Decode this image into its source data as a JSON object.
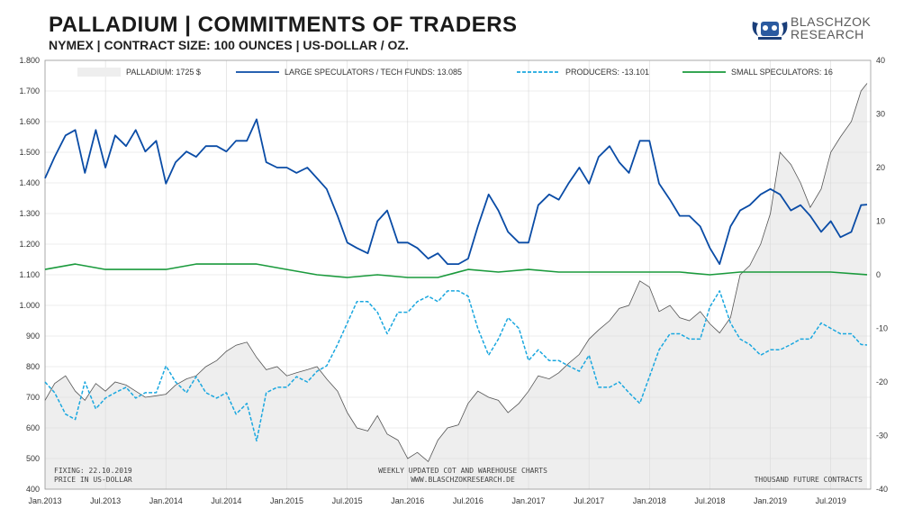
{
  "header": {
    "title": "PALLADIUM | COMMITMENTS OF TRADERS",
    "subtitle": "NYMEX | CONTRACT SIZE: 100 OUNCES | US-DOLLAR / OZ."
  },
  "logo": {
    "line1": "BLASCHZOK",
    "line2": "RESEARCH"
  },
  "footer": {
    "fixing": "FIXING: 22.10.2019",
    "price_unit": "PRICE IN US-DOLLAR",
    "center_line1": "WEEKLY UPDATED COT AND WAREHOUSE CHARTS",
    "center_line2": "WWW.BLASCHZOKRESEARCH.DE",
    "right": "THOUSAND FUTURE CONTRACTS"
  },
  "colors": {
    "price_fill": "#eeeeee",
    "price_line": "#555555",
    "large_spec": "#0a4ca6",
    "producers": "#1aa7df",
    "small_spec": "#1a9a3c",
    "grid": "#d9d9d9"
  },
  "chart_data": {
    "type": "line",
    "x_tick_labels": [
      "Jan.2013",
      "Jul.2013",
      "Jan.2014",
      "Jul.2014",
      "Jan.2015",
      "Jul.2015",
      "Jan.2016",
      "Jul.2016",
      "Jan.2017",
      "Jul.2017",
      "Jan.2018",
      "Jul.2018",
      "Jan.2019",
      "Jul.2019"
    ],
    "x_tick_positions": [
      2013.0,
      2013.5,
      2014.0,
      2014.5,
      2015.0,
      2015.5,
      2016.0,
      2016.5,
      2017.0,
      2017.5,
      2018.0,
      2018.5,
      2019.0,
      2019.5
    ],
    "x_range": [
      2013.0,
      2019.83
    ],
    "left_axis": {
      "label": "Price in US-Dollar",
      "range": [
        400,
        1800
      ],
      "ticks": [
        "400",
        "500",
        "600",
        "700",
        "800",
        "900",
        "1.000",
        "1.100",
        "1.200",
        "1.300",
        "1.400",
        "1.500",
        "1.600",
        "1.700",
        "1.800"
      ],
      "tick_values": [
        400,
        500,
        600,
        700,
        800,
        900,
        1000,
        1100,
        1200,
        1300,
        1400,
        1500,
        1600,
        1700,
        1800
      ]
    },
    "right_axis": {
      "label": "Thousand future contracts",
      "range": [
        -40,
        40
      ],
      "ticks": [
        "-40",
        "-30",
        "-20",
        "-10",
        "0",
        "10",
        "20",
        "30",
        "40"
      ],
      "tick_values": [
        -40,
        -30,
        -20,
        -10,
        0,
        10,
        20,
        30,
        40
      ]
    },
    "legend": [
      {
        "key": "price",
        "label": "PALLADIUM: 1725 $",
        "style": "area"
      },
      {
        "key": "large",
        "label": "LARGE SPECULATORS / TECH FUNDS: 13.085",
        "style": "solid"
      },
      {
        "key": "producers",
        "label": "PRODUCERS: -13.101",
        "style": "dashed"
      },
      {
        "key": "small",
        "label": "SMALL SPECULATORS: 16",
        "style": "solid"
      }
    ],
    "series": [
      {
        "name": "Palladium price",
        "axis": "left",
        "x": [
          2013.0,
          2013.08,
          2013.17,
          2013.25,
          2013.33,
          2013.42,
          2013.5,
          2013.58,
          2013.67,
          2013.75,
          2013.83,
          2013.92,
          2014.0,
          2014.08,
          2014.17,
          2014.25,
          2014.33,
          2014.42,
          2014.5,
          2014.58,
          2014.67,
          2014.75,
          2014.83,
          2014.92,
          2015.0,
          2015.08,
          2015.17,
          2015.25,
          2015.33,
          2015.42,
          2015.5,
          2015.58,
          2015.67,
          2015.75,
          2015.83,
          2015.92,
          2016.0,
          2016.08,
          2016.17,
          2016.25,
          2016.33,
          2016.42,
          2016.5,
          2016.58,
          2016.67,
          2016.75,
          2016.83,
          2016.92,
          2017.0,
          2017.08,
          2017.17,
          2017.25,
          2017.33,
          2017.42,
          2017.5,
          2017.58,
          2017.67,
          2017.75,
          2017.83,
          2017.92,
          2018.0,
          2018.08,
          2018.17,
          2018.25,
          2018.33,
          2018.42,
          2018.5,
          2018.58,
          2018.67,
          2018.75,
          2018.83,
          2018.92,
          2019.0,
          2019.08,
          2019.17,
          2019.25,
          2019.33,
          2019.42,
          2019.5,
          2019.58,
          2019.67,
          2019.75,
          2019.8
        ],
        "values": [
          690,
          745,
          770,
          720,
          690,
          745,
          720,
          750,
          740,
          720,
          700,
          705,
          710,
          740,
          760,
          770,
          800,
          820,
          850,
          870,
          880,
          830,
          790,
          800,
          770,
          780,
          790,
          800,
          760,
          720,
          650,
          600,
          590,
          640,
          580,
          560,
          500,
          520,
          490,
          560,
          600,
          610,
          680,
          720,
          700,
          690,
          650,
          680,
          720,
          770,
          760,
          780,
          810,
          840,
          890,
          920,
          950,
          990,
          1000,
          1080,
          1060,
          980,
          1000,
          960,
          950,
          980,
          940,
          910,
          960,
          1100,
          1130,
          1200,
          1300,
          1500,
          1460,
          1400,
          1320,
          1380,
          1500,
          1550,
          1600,
          1700,
          1725
        ]
      },
      {
        "name": "Large speculators / tech funds",
        "axis": "right",
        "x": [
          2013.0,
          2013.08,
          2013.17,
          2013.25,
          2013.33,
          2013.42,
          2013.5,
          2013.58,
          2013.67,
          2013.75,
          2013.83,
          2013.92,
          2014.0,
          2014.08,
          2014.17,
          2014.25,
          2014.33,
          2014.42,
          2014.5,
          2014.58,
          2014.67,
          2014.75,
          2014.83,
          2014.92,
          2015.0,
          2015.08,
          2015.17,
          2015.25,
          2015.33,
          2015.42,
          2015.5,
          2015.58,
          2015.67,
          2015.75,
          2015.83,
          2015.92,
          2016.0,
          2016.08,
          2016.17,
          2016.25,
          2016.33,
          2016.42,
          2016.5,
          2016.58,
          2016.67,
          2016.75,
          2016.83,
          2016.92,
          2017.0,
          2017.08,
          2017.17,
          2017.25,
          2017.33,
          2017.42,
          2017.5,
          2017.58,
          2017.67,
          2017.75,
          2017.83,
          2017.92,
          2018.0,
          2018.08,
          2018.17,
          2018.25,
          2018.33,
          2018.42,
          2018.5,
          2018.58,
          2018.67,
          2018.75,
          2018.83,
          2018.92,
          2019.0,
          2019.08,
          2019.17,
          2019.25,
          2019.33,
          2019.42,
          2019.5,
          2019.58,
          2019.67,
          2019.75,
          2019.8
        ],
        "values": [
          18,
          22,
          26,
          27,
          19,
          27,
          20,
          26,
          24,
          27,
          23,
          25,
          17,
          21,
          23,
          22,
          24,
          24,
          23,
          25,
          25,
          29,
          21,
          20,
          20,
          19,
          20,
          18,
          16,
          11,
          6,
          5,
          4,
          10,
          12,
          6,
          6,
          5,
          3,
          4,
          2,
          2,
          3,
          9,
          15,
          12,
          8,
          6,
          6,
          13,
          15,
          14,
          17,
          20,
          17,
          22,
          24,
          21,
          19,
          25,
          25,
          17,
          14,
          11,
          11,
          9,
          5,
          2,
          9,
          12,
          13,
          15,
          16,
          15,
          12,
          13,
          11,
          8,
          10,
          7,
          8,
          13,
          13.085
        ]
      },
      {
        "name": "Producers",
        "axis": "right",
        "x": [
          2013.0,
          2013.08,
          2013.17,
          2013.25,
          2013.33,
          2013.42,
          2013.5,
          2013.58,
          2013.67,
          2013.75,
          2013.83,
          2013.92,
          2014.0,
          2014.08,
          2014.17,
          2014.25,
          2014.33,
          2014.42,
          2014.5,
          2014.58,
          2014.67,
          2014.75,
          2014.83,
          2014.92,
          2015.0,
          2015.08,
          2015.17,
          2015.25,
          2015.33,
          2015.42,
          2015.5,
          2015.58,
          2015.67,
          2015.75,
          2015.83,
          2015.92,
          2016.0,
          2016.08,
          2016.17,
          2016.25,
          2016.33,
          2016.42,
          2016.5,
          2016.58,
          2016.67,
          2016.75,
          2016.83,
          2016.92,
          2017.0,
          2017.08,
          2017.17,
          2017.25,
          2017.33,
          2017.42,
          2017.5,
          2017.58,
          2017.67,
          2017.75,
          2017.83,
          2017.92,
          2018.0,
          2018.08,
          2018.17,
          2018.25,
          2018.33,
          2018.42,
          2018.5,
          2018.58,
          2018.67,
          2018.75,
          2018.83,
          2018.92,
          2019.0,
          2019.08,
          2019.17,
          2019.25,
          2019.33,
          2019.42,
          2019.5,
          2019.58,
          2019.67,
          2019.75,
          2019.8
        ],
        "values": [
          -20,
          -22,
          -26,
          -27,
          -20,
          -25,
          -23,
          -22,
          -21,
          -23,
          -22,
          -22,
          -17,
          -20,
          -22,
          -19,
          -22,
          -23,
          -22,
          -26,
          -24,
          -31,
          -22,
          -21,
          -21,
          -19,
          -20,
          -18,
          -17,
          -13,
          -9,
          -5,
          -5,
          -7,
          -11,
          -7,
          -7,
          -5,
          -4,
          -5,
          -3,
          -3,
          -4,
          -10,
          -15,
          -12,
          -8,
          -10,
          -16,
          -14,
          -16,
          -16,
          -17,
          -18,
          -15,
          -21,
          -21,
          -20,
          -22,
          -24,
          -19,
          -14,
          -11,
          -11,
          -12,
          -12,
          -6,
          -3,
          -9,
          -12,
          -13,
          -15,
          -14,
          -14,
          -13,
          -12,
          -12,
          -9,
          -10,
          -11,
          -11,
          -13,
          -13.101
        ]
      },
      {
        "name": "Small speculators",
        "axis": "right",
        "x": [
          2013.0,
          2013.25,
          2013.5,
          2013.75,
          2014.0,
          2014.25,
          2014.5,
          2014.75,
          2015.0,
          2015.25,
          2015.5,
          2015.75,
          2016.0,
          2016.25,
          2016.5,
          2016.75,
          2017.0,
          2017.25,
          2017.5,
          2017.75,
          2018.0,
          2018.25,
          2018.5,
          2018.75,
          2019.0,
          2019.25,
          2019.5,
          2019.8
        ],
        "values": [
          1,
          2,
          1,
          1,
          1,
          2,
          2,
          2,
          1,
          0,
          -0.5,
          0,
          -0.5,
          -0.5,
          1,
          0.5,
          1,
          0.5,
          0.5,
          0.5,
          0.5,
          0.5,
          0,
          0.5,
          0.5,
          0.5,
          0.5,
          0.016
        ]
      }
    ]
  }
}
